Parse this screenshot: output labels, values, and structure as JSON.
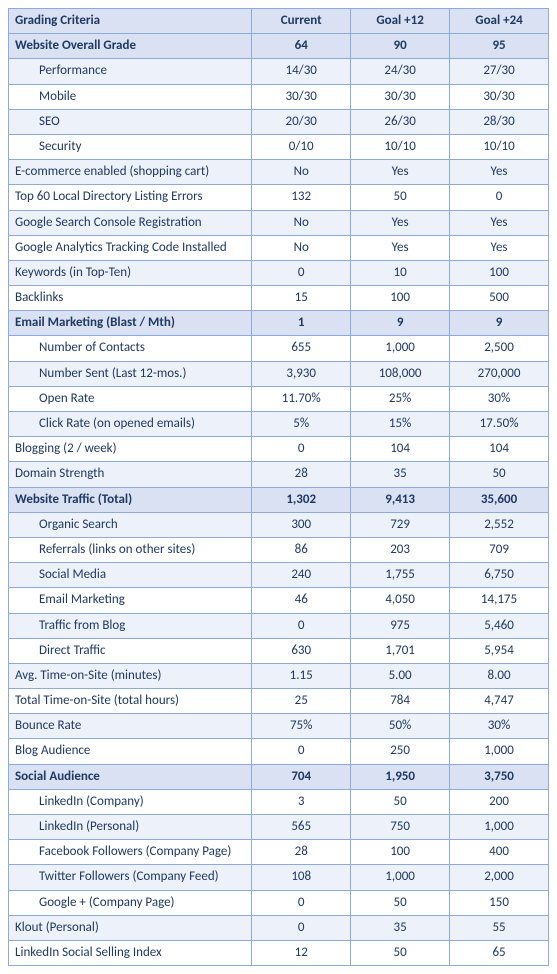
{
  "headers": {
    "criteria": "Grading Criteria",
    "current": "Current",
    "goal12": "Goal +12",
    "goal24": "Goal +24"
  },
  "rows": [
    {
      "label": "Website Overall Grade",
      "current": "64",
      "goal12": "90",
      "goal24": "95",
      "section": true,
      "indent": false
    },
    {
      "label": "Performance",
      "current": "14/30",
      "goal12": "24/30",
      "goal24": "27/30",
      "section": false,
      "alt": true,
      "indent": true
    },
    {
      "label": "Mobile",
      "current": "30/30",
      "goal12": "30/30",
      "goal24": "30/30",
      "section": false,
      "alt": false,
      "indent": true
    },
    {
      "label": "SEO",
      "current": "20/30",
      "goal12": "26/30",
      "goal24": "28/30",
      "section": false,
      "alt": true,
      "indent": true
    },
    {
      "label": "Security",
      "current": "0/10",
      "goal12": "10/10",
      "goal24": "10/10",
      "section": false,
      "alt": false,
      "indent": true
    },
    {
      "label": "E-commerce enabled (shopping cart)",
      "current": "No",
      "goal12": "Yes",
      "goal24": "Yes",
      "section": false,
      "alt": true,
      "indent": false
    },
    {
      "label": "Top 60 Local Directory Listing Errors",
      "current": "132",
      "goal12": "50",
      "goal24": "0",
      "section": false,
      "alt": false,
      "indent": false
    },
    {
      "label": "Google Search Console Registration",
      "current": "No",
      "goal12": "Yes",
      "goal24": "Yes",
      "section": false,
      "alt": true,
      "indent": false
    },
    {
      "label": "Google Analytics Tracking Code Installed",
      "current": "No",
      "goal12": "Yes",
      "goal24": "Yes",
      "section": false,
      "alt": false,
      "indent": false
    },
    {
      "label": "Keywords (in Top-Ten)",
      "current": "0",
      "goal12": "10",
      "goal24": "100",
      "section": false,
      "alt": true,
      "indent": false
    },
    {
      "label": "Backlinks",
      "current": "15",
      "goal12": "100",
      "goal24": "500",
      "section": false,
      "alt": false,
      "indent": false
    },
    {
      "label": "Email Marketing (Blast / Mth)",
      "current": "1",
      "goal12": "9",
      "goal24": "9",
      "section": true,
      "indent": false
    },
    {
      "label": "Number of Contacts",
      "current": "655",
      "goal12": "1,000",
      "goal24": "2,500",
      "section": false,
      "alt": false,
      "indent": true
    },
    {
      "label": "Number Sent (Last 12-mos.)",
      "current": "3,930",
      "goal12": "108,000",
      "goal24": "270,000",
      "section": false,
      "alt": true,
      "indent": true
    },
    {
      "label": "Open Rate",
      "current": "11.70%",
      "goal12": "25%",
      "goal24": "30%",
      "section": false,
      "alt": false,
      "indent": true
    },
    {
      "label": "Click Rate (on opened emails)",
      "current": "5%",
      "goal12": "15%",
      "goal24": "17.50%",
      "section": false,
      "alt": true,
      "indent": true
    },
    {
      "label": "Blogging (2 / week)",
      "current": "0",
      "goal12": "104",
      "goal24": "104",
      "section": false,
      "alt": false,
      "indent": false
    },
    {
      "label": "Domain Strength",
      "current": "28",
      "goal12": "35",
      "goal24": "50",
      "section": false,
      "alt": true,
      "indent": false
    },
    {
      "label": "Website Traffic (Total)",
      "current": "1,302",
      "goal12": "9,413",
      "goal24": "35,600",
      "section": true,
      "indent": false
    },
    {
      "label": "Organic Search",
      "current": "300",
      "goal12": "729",
      "goal24": "2,552",
      "section": false,
      "alt": true,
      "indent": true
    },
    {
      "label": "Referrals (links on other sites)",
      "current": "86",
      "goal12": "203",
      "goal24": "709",
      "section": false,
      "alt": false,
      "indent": true
    },
    {
      "label": "Social Media",
      "current": "240",
      "goal12": "1,755",
      "goal24": "6,750",
      "section": false,
      "alt": true,
      "indent": true
    },
    {
      "label": "Email Marketing",
      "current": "46",
      "goal12": "4,050",
      "goal24": "14,175",
      "section": false,
      "alt": false,
      "indent": true
    },
    {
      "label": "Traffic from Blog",
      "current": "0",
      "goal12": "975",
      "goal24": "5,460",
      "section": false,
      "alt": true,
      "indent": true
    },
    {
      "label": "Direct Traffic",
      "current": "630",
      "goal12": "1,701",
      "goal24": "5,954",
      "section": false,
      "alt": false,
      "indent": true
    },
    {
      "label": "Avg. Time-on-Site (minutes)",
      "current": "1.15",
      "goal12": "5.00",
      "goal24": "8.00",
      "section": false,
      "alt": true,
      "indent": false
    },
    {
      "label": "Total Time-on-Site (total hours)",
      "current": "25",
      "goal12": "784",
      "goal24": "4,747",
      "section": false,
      "alt": false,
      "indent": false
    },
    {
      "label": "Bounce Rate",
      "current": "75%",
      "goal12": "50%",
      "goal24": "30%",
      "section": false,
      "alt": true,
      "indent": false
    },
    {
      "label": "Blog Audience",
      "current": "0",
      "goal12": "250",
      "goal24": "1,000",
      "section": false,
      "alt": false,
      "indent": false
    },
    {
      "label": "Social Audience",
      "current": "704",
      "goal12": "1,950",
      "goal24": "3,750",
      "section": true,
      "indent": false
    },
    {
      "label": "LinkedIn (Company)",
      "current": "3",
      "goal12": "50",
      "goal24": "200",
      "section": false,
      "alt": false,
      "indent": true
    },
    {
      "label": "LinkedIn (Personal)",
      "current": "565",
      "goal12": "750",
      "goal24": "1,000",
      "section": false,
      "alt": true,
      "indent": true
    },
    {
      "label": "Facebook Followers (Company Page)",
      "current": "28",
      "goal12": "100",
      "goal24": "400",
      "section": false,
      "alt": false,
      "indent": true
    },
    {
      "label": "Twitter Followers (Company Feed)",
      "current": "108",
      "goal12": "1,000",
      "goal24": "2,000",
      "section": false,
      "alt": true,
      "indent": true
    },
    {
      "label": "Google + (Company Page)",
      "current": "0",
      "goal12": "50",
      "goal24": "150",
      "section": false,
      "alt": false,
      "indent": true
    },
    {
      "label": "Klout (Personal)",
      "current": "0",
      "goal12": "35",
      "goal24": "55",
      "section": false,
      "alt": true,
      "indent": false
    },
    {
      "label": "LinkedIn Social Selling Index",
      "current": "12",
      "goal12": "50",
      "goal24": "65",
      "section": false,
      "alt": false,
      "indent": false
    }
  ]
}
